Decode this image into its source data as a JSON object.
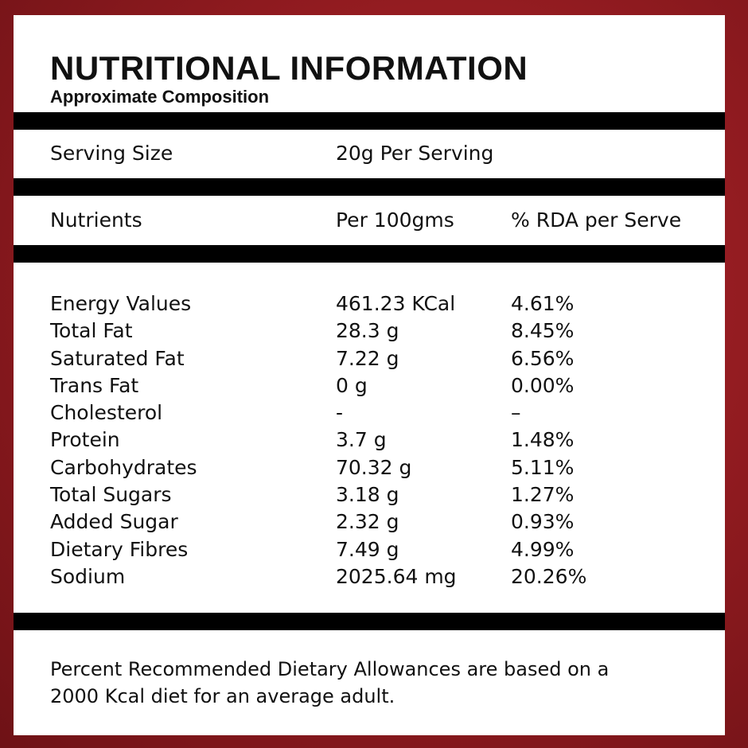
{
  "header": {
    "title": "NUTRITIONAL INFORMATION",
    "subtitle": "Approximate Composition"
  },
  "serving": {
    "label": "Serving Size",
    "value": "20g Per Serving"
  },
  "columns": {
    "nutrients": "Nutrients",
    "per100": "Per 100gms",
    "rda": "% RDA per Serve"
  },
  "rows": [
    {
      "name": "Energy Values",
      "per100": "461.23 KCal",
      "rda": "4.61%"
    },
    {
      "name": "Total Fat",
      "per100": "28.3 g",
      "rda": "8.45%"
    },
    {
      "name": "Saturated Fat",
      "per100": "7.22 g",
      "rda": "6.56%"
    },
    {
      "name": "Trans Fat",
      "per100": "0 g",
      "rda": "0.00%"
    },
    {
      "name": "Cholesterol",
      "per100": "-",
      "rda": "–"
    },
    {
      "name": "Protein",
      "per100": "3.7 g",
      "rda": "1.48%"
    },
    {
      "name": "Carbohydrates",
      "per100": "70.32 g",
      "rda": "5.11%"
    },
    {
      "name": "Total Sugars",
      "per100": "3.18 g",
      "rda": "1.27%"
    },
    {
      "name": "Added Sugar",
      "per100": "2.32 g",
      "rda": "0.93%"
    },
    {
      "name": "Dietary Fibres",
      "per100": "7.49 g",
      "rda": "4.99%"
    },
    {
      "name": "Sodium",
      "per100": "2025.64 mg",
      "rda": "20.26%"
    }
  ],
  "footnote": {
    "line1": "Percent Recommended Dietary Allowances are based on a",
    "line2": "2000 Kcal diet for an average adult."
  }
}
